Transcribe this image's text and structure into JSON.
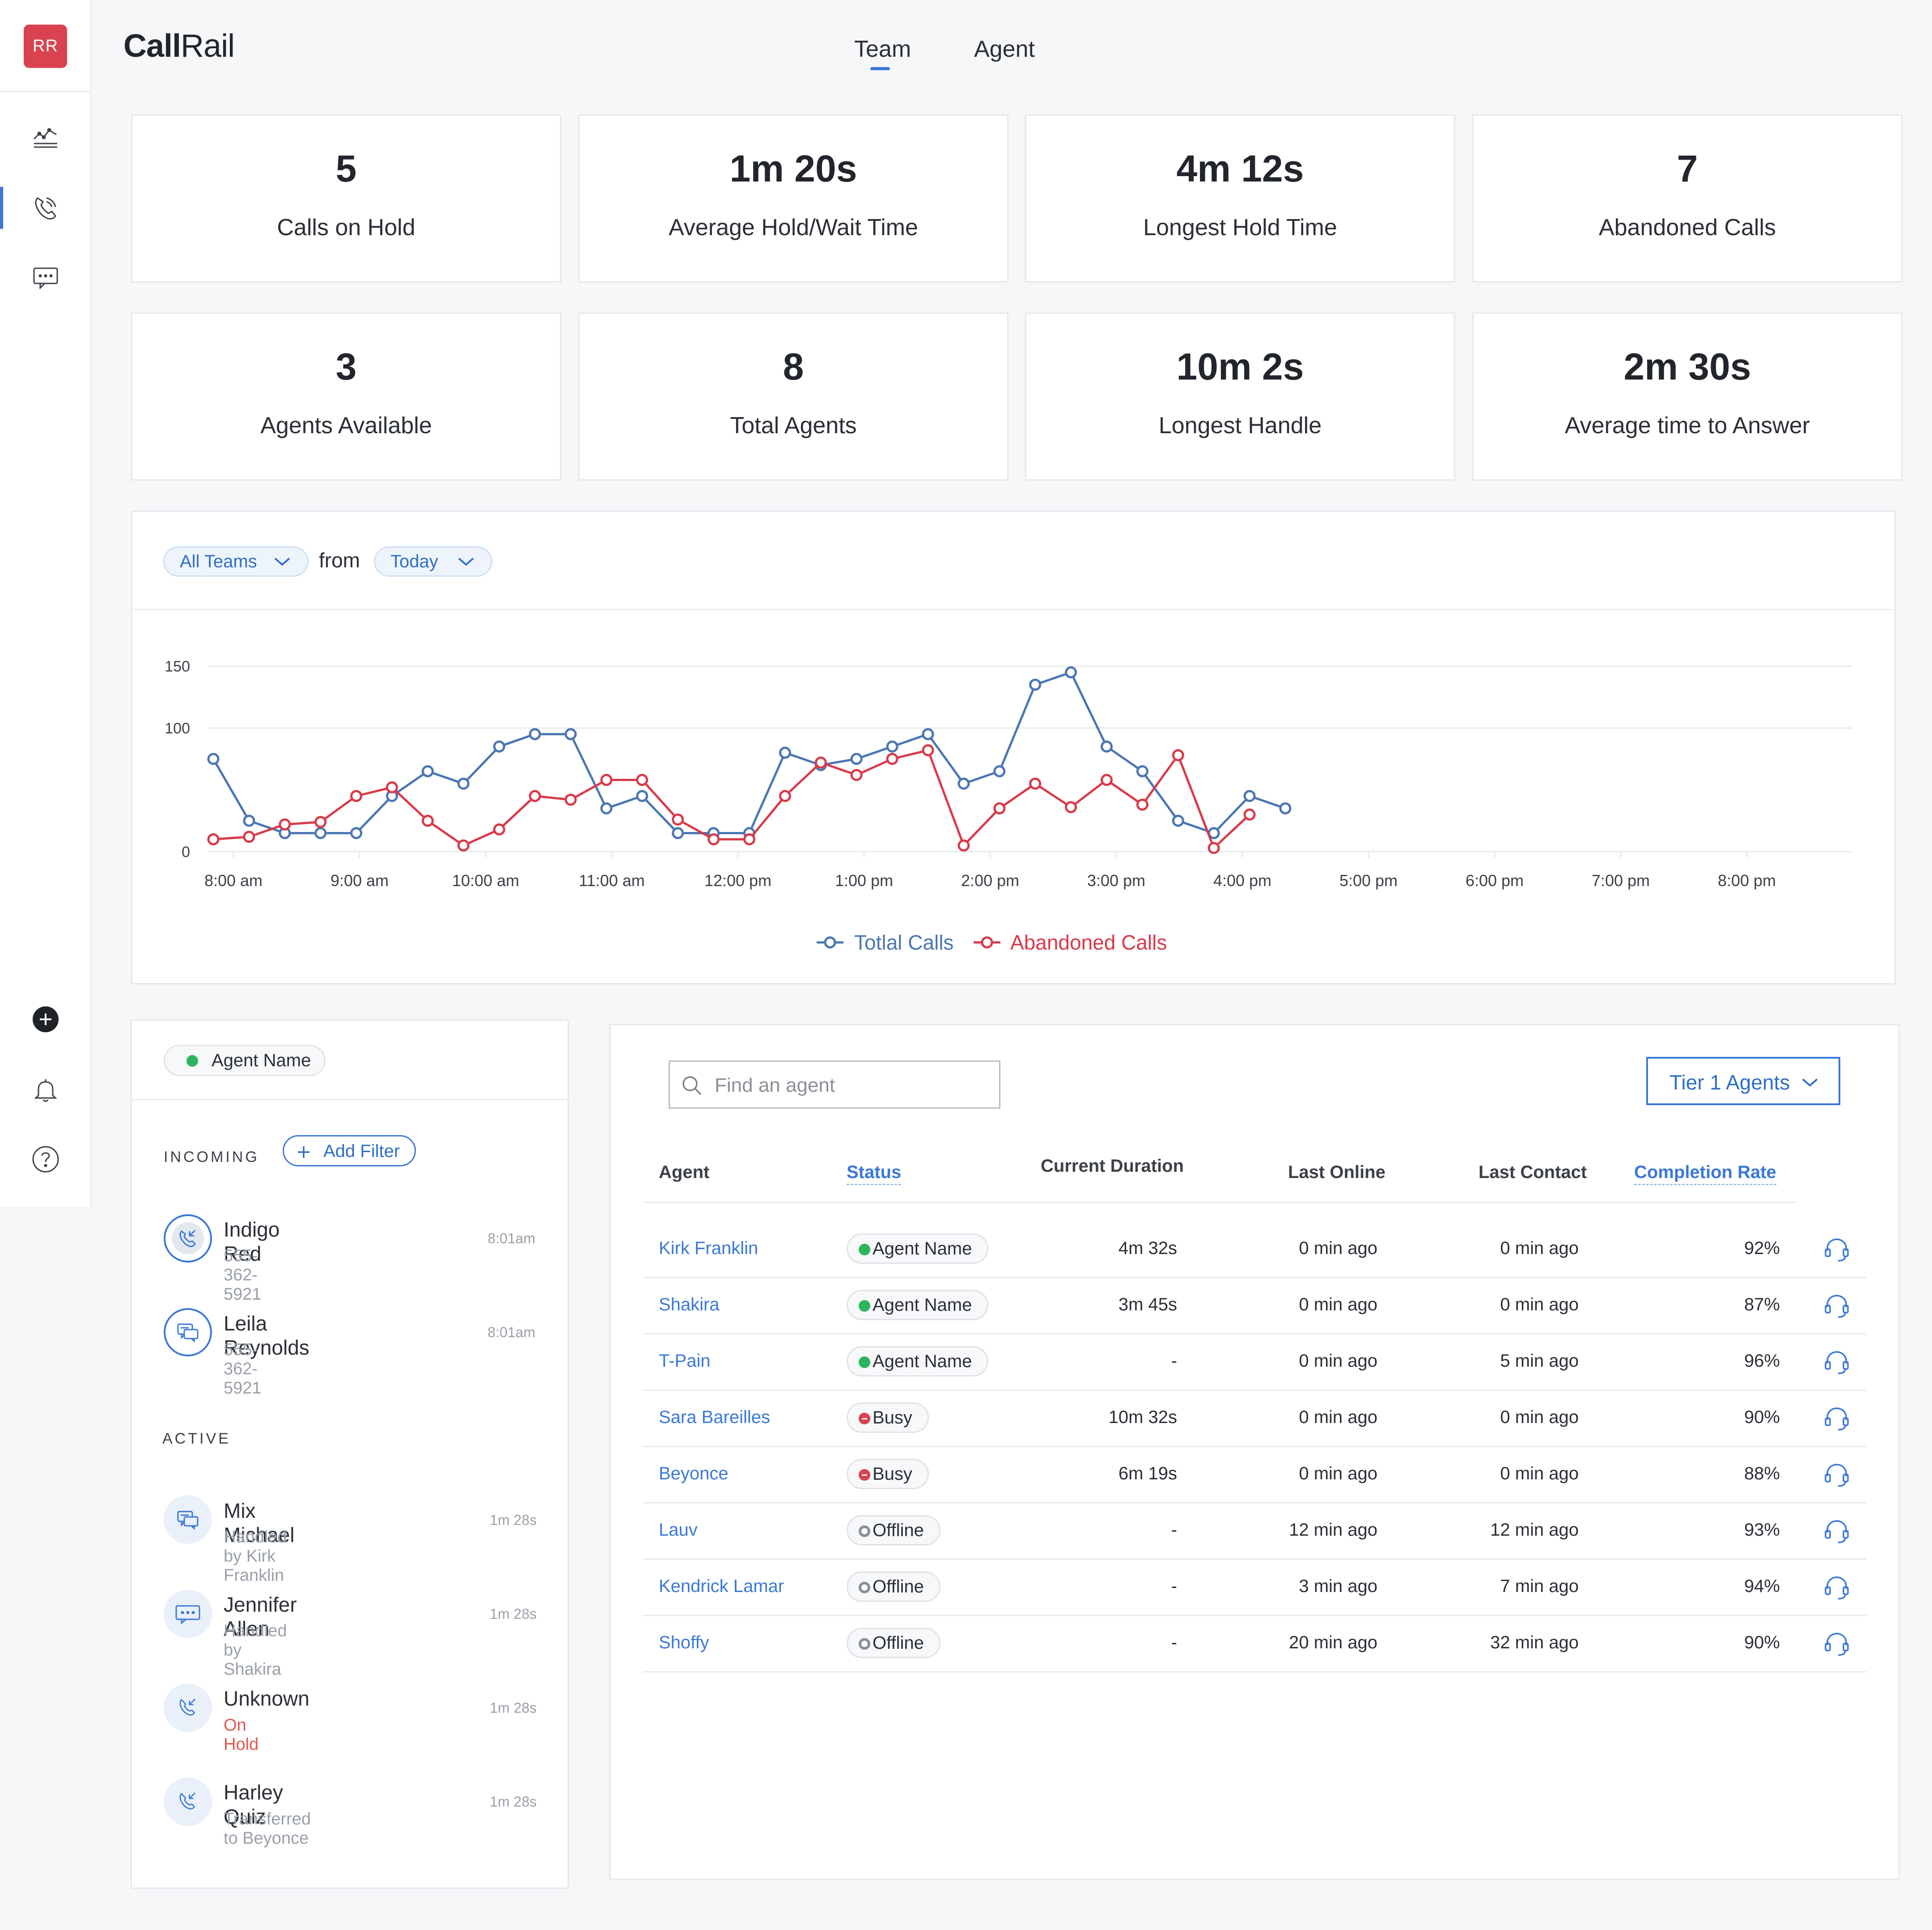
{
  "app": {
    "logo_call": "Call",
    "logo_rail": "Rail",
    "avatar_initials": "RR"
  },
  "nav": {
    "tabs": [
      {
        "label": "Team",
        "active": true
      },
      {
        "label": "Agent",
        "active": false
      }
    ]
  },
  "sidebar": {
    "items": [
      "analytics-icon",
      "calls-icon",
      "messages-icon"
    ],
    "bottom": [
      "add-icon",
      "bell-icon",
      "help-icon"
    ]
  },
  "stats": [
    {
      "value": "5",
      "label": "Calls on Hold"
    },
    {
      "value": "1m 20s",
      "label": "Average Hold/Wait Time"
    },
    {
      "value": "4m 12s",
      "label": "Longest Hold Time"
    },
    {
      "value": "7",
      "label": "Abandoned Calls"
    },
    {
      "value": "3",
      "label": "Agents Available"
    },
    {
      "value": "8",
      "label": "Total Agents"
    },
    {
      "value": "10m 2s",
      "label": "Longest Handle"
    },
    {
      "value": "2m 30s",
      "label": "Average time to Answer"
    }
  ],
  "filters": {
    "team": "All Teams",
    "from_label": "from",
    "range": "Today"
  },
  "chart_data": {
    "type": "line",
    "x_start": "8:00 am",
    "x_step_minutes": 17,
    "xticks": [
      "8:00 am",
      "9:00 am",
      "10:00 am",
      "11:00 am",
      "12:00 pm",
      "1:00 pm",
      "2:00 pm",
      "3:00 pm",
      "4:00 pm",
      "5:00 pm",
      "6:00 pm",
      "7:00 pm",
      "8:00 pm"
    ],
    "yticks": [
      0,
      100,
      150
    ],
    "ylim": [
      0,
      150
    ],
    "series": [
      {
        "name": "Totlal Calls",
        "color": "#4a76b3",
        "values": [
          75,
          25,
          15,
          15,
          15,
          45,
          65,
          55,
          85,
          95,
          95,
          35,
          45,
          15,
          15,
          15,
          80,
          70,
          75,
          85,
          95,
          55,
          65,
          135,
          145,
          85,
          65,
          25,
          15,
          45,
          35
        ]
      },
      {
        "name": "Abandoned Calls",
        "color": "#d83a4a",
        "values": [
          10,
          12,
          22,
          24,
          45,
          52,
          25,
          5,
          18,
          45,
          42,
          58,
          58,
          26,
          10,
          10,
          45,
          72,
          62,
          75,
          82,
          5,
          35,
          55,
          36,
          58,
          38,
          78,
          3,
          30
        ]
      }
    ],
    "legend": "bottom-center"
  },
  "queue": {
    "filter_pill": "Agent Name",
    "incoming_label": "INCOMING",
    "add_filter": "Add Filter",
    "incoming": [
      {
        "name": "Indigo Red",
        "sub": "555-362-5921",
        "time": "8:01am",
        "icon": "incoming-call-icon"
      },
      {
        "name": "Leila Reynolds",
        "sub": "555-362-5921",
        "time": "8:01am",
        "icon": "chat-icon"
      }
    ],
    "active_label": "ACTIVE",
    "active": [
      {
        "name": "Mix Michael",
        "sub": "Handled by Kirk Franklin",
        "time": "1m 28s",
        "icon": "chat-icon"
      },
      {
        "name": "Jennifer Allen",
        "sub": "Handled by Shakira",
        "time": "1m 28s",
        "icon": "message-icon"
      },
      {
        "name": "Unknown",
        "sub": "On Hold",
        "time": "1m 28s",
        "icon": "incoming-call-icon",
        "sub_color": "#e0574f"
      },
      {
        "name": "Harley Quiz",
        "sub": "Transferred to Beyonce",
        "time": "1m 28s",
        "icon": "incoming-call-icon"
      }
    ]
  },
  "agents": {
    "search_placeholder": "Find an agent",
    "tier_select": "Tier 1 Agents",
    "headers": {
      "agent": "Agent",
      "status": "Status",
      "current_duration": "Current Duration",
      "last_online": "Last Online",
      "last_contact": "Last Contact",
      "completion_rate": "Completion Rate"
    },
    "rows": [
      {
        "name": "Kirk Franklin",
        "status": "Agent Name",
        "status_type": "available",
        "duration": "4m 32s",
        "last_online": "0 min ago",
        "last_contact": "0  min ago",
        "rate": "92%"
      },
      {
        "name": "Shakira",
        "status": "Agent Name",
        "status_type": "available",
        "duration": "3m 45s",
        "last_online": "0 min ago",
        "last_contact": "0  min ago",
        "rate": "87%"
      },
      {
        "name": "T-Pain",
        "status": "Agent Name",
        "status_type": "available",
        "duration": "-",
        "last_online": "0 min ago",
        "last_contact": "5 min ago",
        "rate": "96%"
      },
      {
        "name": "Sara Bareilles",
        "status": "Busy",
        "status_type": "busy",
        "duration": "10m 32s",
        "last_online": "0 min ago",
        "last_contact": "0  min ago",
        "rate": "90%"
      },
      {
        "name": "Beyonce",
        "status": "Busy",
        "status_type": "busy",
        "duration": "6m 19s",
        "last_online": "0 min ago",
        "last_contact": "0 min ago",
        "rate": "88%"
      },
      {
        "name": "Lauv",
        "status": "Offline",
        "status_type": "offline",
        "duration": "-",
        "last_online": "12 min ago",
        "last_contact": "12 min ago",
        "rate": "93%"
      },
      {
        "name": "Kendrick Lamar",
        "status": "Offline",
        "status_type": "offline",
        "duration": "-",
        "last_online": "3 min ago",
        "last_contact": "7 min ago",
        "rate": "94%"
      },
      {
        "name": "Shoffy",
        "status": "Offline",
        "status_type": "offline",
        "duration": "-",
        "last_online": "20 min ago",
        "last_contact": "32 min ago",
        "rate": "90%"
      }
    ]
  },
  "colors": {
    "accent": "#3b78d6",
    "available": "#2db55d",
    "busy": "#d9434f",
    "offline": "#8a9099",
    "brand": "#d9434f"
  }
}
